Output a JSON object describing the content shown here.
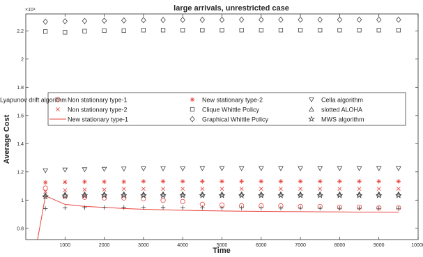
{
  "chart_data": {
    "type": "scatter",
    "title": "large arrivals, unrestricted case",
    "xlabel": "Time",
    "ylabel": "Average Cost",
    "xlim": [
      0,
      10000
    ],
    "ylim": [
      7200,
      23200
    ],
    "y_exponent_label": "×10⁴",
    "x_ticks": [
      {
        "value": 1000,
        "label": "1000"
      },
      {
        "value": 2000,
        "label": "2000"
      },
      {
        "value": 3000,
        "label": "3000"
      },
      {
        "value": 4000,
        "label": "4000"
      },
      {
        "value": 5000,
        "label": "5000"
      },
      {
        "value": 6000,
        "label": "6000"
      },
      {
        "value": 7000,
        "label": "7000"
      },
      {
        "value": 8000,
        "label": "8000"
      },
      {
        "value": 9000,
        "label": "9000"
      },
      {
        "value": 10000,
        "label": "10000"
      }
    ],
    "y_ticks": [
      {
        "value": 8000,
        "label": "0.8"
      },
      {
        "value": 10000,
        "label": "1"
      },
      {
        "value": 12000,
        "label": "1.2"
      },
      {
        "value": 14000,
        "label": "1.4"
      },
      {
        "value": 16000,
        "label": "1.6"
      },
      {
        "value": 18000,
        "label": "1.8"
      },
      {
        "value": 20000,
        "label": "2"
      },
      {
        "value": 22000,
        "label": "2.2"
      }
    ],
    "grid": false,
    "legend_placement": "center-left",
    "x": [
      500,
      1000,
      1500,
      2000,
      2500,
      3000,
      3500,
      4000,
      4500,
      5000,
      5500,
      6000,
      6500,
      7000,
      7500,
      8000,
      8500,
      9000,
      9500
    ],
    "series": [
      {
        "name": "Non stationary type-1",
        "marker": "circle",
        "color": "#e8413c",
        "values": [
          10850,
          10250,
          10200,
          10150,
          10150,
          10100,
          9980,
          9900,
          9700,
          9650,
          9600,
          9600,
          9600,
          9550,
          9550,
          9500,
          9500,
          9450,
          9450
        ]
      },
      {
        "name": "Non stationary type-2",
        "marker": "x",
        "color": "#e8413c",
        "values": [
          10600,
          10700,
          10750,
          10750,
          10800,
          10800,
          10800,
          10800,
          10800,
          10800,
          10800,
          10800,
          10800,
          10800,
          10800,
          10800,
          10800,
          10800,
          10800
        ]
      },
      {
        "name": "New stationary type-1",
        "marker": "line",
        "color": "#e8413c",
        "values": [
          10300,
          9700,
          9550,
          9480,
          9400,
          9350,
          9310,
          9280,
          9250,
          9230,
          9210,
          9200,
          9190,
          9180,
          9170,
          9160,
          9150,
          9150,
          9140
        ]
      },
      {
        "name": "New stationary type-2",
        "marker": "asterisk",
        "color": "#e8413c",
        "values": [
          11250,
          11280,
          11300,
          11300,
          11300,
          11330,
          11330,
          11330,
          11330,
          11330,
          11330,
          11330,
          11330,
          11330,
          11330,
          11330,
          11330,
          11330,
          11330
        ]
      },
      {
        "name": "Clique Whittle Policy",
        "marker": "square",
        "color": "#404040",
        "values": [
          21950,
          21900,
          21980,
          22020,
          22020,
          22050,
          22050,
          22050,
          22050,
          22050,
          22050,
          22050,
          22050,
          22050,
          22050,
          22050,
          22050,
          22050,
          22050
        ]
      },
      {
        "name": "Graphical Whittle Policy",
        "marker": "diamond",
        "color": "#404040",
        "values": [
          22650,
          22680,
          22700,
          22720,
          22740,
          22760,
          22770,
          22780,
          22780,
          22780,
          22790,
          22790,
          22790,
          22790,
          22790,
          22790,
          22790,
          22790,
          22790
        ]
      },
      {
        "name": "Cella algorithm",
        "marker": "triangle-down",
        "color": "#404040",
        "values": [
          12100,
          12150,
          12170,
          12200,
          12220,
          12230,
          12240,
          12240,
          12250,
          12250,
          12250,
          12250,
          12250,
          12250,
          12250,
          12250,
          12250,
          12250,
          12250
        ]
      },
      {
        "name": "slotted ALOHA",
        "marker": "triangle-up",
        "color": "#404040",
        "values": [
          10350,
          10400,
          10420,
          10430,
          10430,
          10430,
          10430,
          10430,
          10430,
          10430,
          10430,
          10430,
          10430,
          10430,
          10430,
          10430,
          10430,
          10430,
          10430
        ]
      },
      {
        "name": "MWS algorithm",
        "marker": "pentagram",
        "color": "#404040",
        "values": [
          10250,
          10300,
          10320,
          10330,
          10330,
          10330,
          10330,
          10330,
          10330,
          10330,
          10330,
          10330,
          10330,
          10330,
          10330,
          10330,
          10330,
          10330,
          10330
        ]
      },
      {
        "name": "Lyapunov drift algorithm",
        "marker": "plus",
        "color": "#404040",
        "values": [
          9400,
          9450,
          9470,
          9480,
          9480,
          9480,
          9480,
          9470,
          9460,
          9450,
          9440,
          9440,
          9430,
          9430,
          9420,
          9420,
          9420,
          9410,
          9410
        ]
      }
    ],
    "extra_line_points": [
      {
        "x": 300,
        "y": 7200
      },
      {
        "x": 500,
        "y": 10300
      }
    ]
  }
}
